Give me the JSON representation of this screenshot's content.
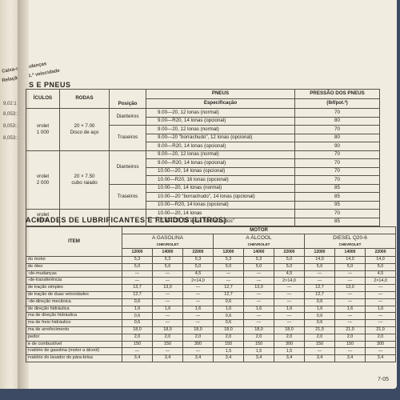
{
  "left_margin": {
    "header_1": "Caixa-de-mudanças",
    "header_2": "Relação da 1.ª velocidade",
    "values": [
      "9,02:1",
      "8,053:1",
      "8,053:1",
      "8,053:1"
    ]
  },
  "tires": {
    "title": "S E PNEUS",
    "headers": {
      "veiculos": "ÍCULOS",
      "rodas": "RODAS",
      "posicao": "Posição",
      "pneus": "PNEUS",
      "especificacao": "Especificação",
      "pressao": "PRESSÃO DOS PNEUS",
      "pressao_unit": "(lbf/pol.²)"
    },
    "groups": [
      {
        "vehicle": "vrolet\n1 000",
        "wheel": "20 × 7.00\nDisco de aço",
        "positions": [
          {
            "name": "Dianteiros",
            "rows": [
              {
                "spec": "9.00—20, 12 lonas (normal)",
                "pressure": "70"
              },
              {
                "spec": "9.00—R20, 14 lonas (opcional)",
                "pressure": "80"
              }
            ]
          },
          {
            "name": "Traseiros",
            "rows": [
              {
                "spec": "9.00—20, 12 lonas (normal)",
                "pressure": "70"
              },
              {
                "spec": "9.00—20 \"borrachudo\", 12 lonas (opcional)",
                "pressure": "80"
              },
              {
                "spec": "9.00—R20, 14 lonas (opcional)",
                "pressure": "90"
              }
            ]
          }
        ]
      },
      {
        "vehicle": "vrolet\n2 000",
        "wheel": "20 × 7.50\ncubo raiado",
        "positions": [
          {
            "name": "Dianteiros",
            "rows": [
              {
                "spec": "9.00—20, 12 lonas (normal)",
                "pressure": "70"
              },
              {
                "spec": "9.00—R20, 14 lonas (opcional)",
                "pressure": "70"
              },
              {
                "spec": "10.00—20, 14 lonas (opcional)",
                "pressure": "70"
              },
              {
                "spec": "10.00—R20, 16 lonas (opcional)",
                "pressure": "70"
              }
            ]
          },
          {
            "name": "Traseiros",
            "rows": [
              {
                "spec": "10.00—20, 14 lonas (normal)",
                "pressure": "85"
              },
              {
                "spec": "10.00—20 \"borrachudo\", 14 lonas (opcional)",
                "pressure": "85"
              },
              {
                "spec": "10.00—R20, 14 lonas (opcional)",
                "pressure": "95"
              }
            ]
          }
        ]
      },
      {
        "vehicle": "vrolet\n0 000",
        "wheel": "",
        "positions": [
          {
            "name": "",
            "rows": [
              {
                "spec": "10.00—20, 14 lonas",
                "pressure": "70"
              },
              {
                "spec": "10.00—20, 14 lonas \"borrachudos\"",
                "pressure": "85"
              }
            ]
          }
        ]
      }
    ]
  },
  "lubricants": {
    "title": "ACIDADES DE LUBRIFICANTES E FLUIDOS (LITROS)",
    "item_header": "ITEM",
    "motor_header": "MOTOR",
    "engine_groups": [
      {
        "name": "A GASOLINA",
        "brand": "CHEVROLET",
        "models": [
          "12000",
          "14000",
          "22000"
        ]
      },
      {
        "name": "A ÁLCOOL",
        "brand": "CHEVROLET",
        "models": [
          "12000",
          "14000",
          "22000"
        ]
      },
      {
        "name": "DIESEL Q20-6",
        "brand": "CHEVROLET",
        "models": [
          "12000",
          "14000",
          "22000"
        ]
      }
    ],
    "rows": [
      {
        "item": "do motor",
        "values": [
          "5,3",
          "5,3",
          "5,3",
          "5,3",
          "5,3",
          "5,0",
          "14,0",
          "14,0",
          "14,0"
        ]
      },
      {
        "item": "de óleo",
        "values": [
          "5,0",
          "5,0",
          "5,0",
          "5,0",
          "5,0",
          "5,0",
          "5,0",
          "5,0",
          "5,0"
        ]
      },
      {
        "item": "-de-mudanças",
        "values": [
          "—",
          "—",
          "4,5",
          "—",
          "—",
          "4,5",
          "—",
          "—",
          "4,5"
        ]
      },
      {
        "item": "-de-transferência",
        "values": [
          "—",
          "—",
          "2×14,0",
          "—",
          "—",
          "2×14,0",
          "—",
          "—",
          "2×14,0"
        ]
      },
      {
        "item": "de tração simples",
        "values": [
          "13,7",
          "13,0",
          "—",
          "12,7",
          "13,0",
          "—",
          "12,7",
          "13,0",
          "—"
        ]
      },
      {
        "item": "de tração de duas velocidades",
        "values": [
          "12,7",
          "—",
          "—",
          "12,7",
          "—",
          "—",
          "12,7",
          "—",
          "—"
        ]
      },
      {
        "item": "-de-direção mecânica",
        "values": [
          "0,6",
          "—",
          "—",
          "0,6",
          "—",
          "—",
          "0,6",
          "—",
          "—"
        ]
      },
      {
        "item": "de direção hidráulica",
        "values": [
          "1,6",
          "1,6",
          "1,6",
          "1,6",
          "1,6",
          "1,6",
          "1,6",
          "1,6",
          "1,6"
        ]
      },
      {
        "item": "ma de direção hidráulica",
        "values": [
          "0,6",
          "—",
          "—",
          "0,6",
          "—",
          "—",
          "0,6",
          "—",
          "—"
        ]
      },
      {
        "item": "ma de freio hidráulico",
        "values": [
          "0,6",
          "—",
          "—",
          "0,6",
          "—",
          "—",
          "0,6",
          "—",
          "—"
        ]
      },
      {
        "item": "ma de arrefecimento",
        "values": [
          "18,0",
          "18,0",
          "18,0",
          "18,0",
          "18,0",
          "18,0",
          "21,0",
          "21,0",
          "21,0"
        ]
      },
      {
        "item": "pedor",
        "values": [
          "2,0",
          "2,0",
          "2,0",
          "2,0",
          "2,0",
          "2,0",
          "2,0",
          "2,0",
          "2,0"
        ]
      },
      {
        "item": "e de combustível",
        "values": [
          "150",
          "150",
          "300",
          "150",
          "150",
          "300",
          "150",
          "150",
          "300"
        ]
      },
      {
        "item": "rvatório de gasolina (motor a álcool)",
        "values": [
          "—",
          "—",
          "—",
          "1,5",
          "1,5",
          "1,5",
          "—",
          "—",
          "—"
        ]
      },
      {
        "item": "rvatório do lavador do pára-brisa",
        "values": [
          "3,4",
          "3,4",
          "3,4",
          "3,4",
          "3,4",
          "3,4",
          "3,4",
          "3,4",
          "3,4"
        ]
      }
    ]
  },
  "page_number": "7-05"
}
